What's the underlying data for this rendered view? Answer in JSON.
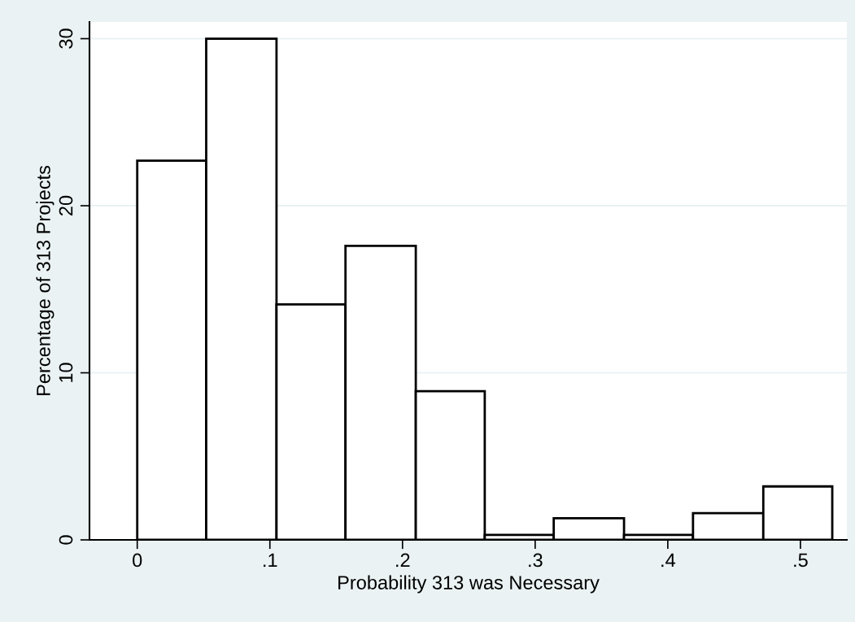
{
  "chart_data": {
    "type": "histogram",
    "xlabel": "Probability 313 was Necessary",
    "ylabel": "Percentage of 313 Projects",
    "bins": [
      0,
      0.052,
      0.105,
      0.157,
      0.21,
      0.262,
      0.314,
      0.367,
      0.419,
      0.472,
      0.524
    ],
    "values": [
      22.7,
      30.0,
      14.1,
      17.6,
      8.9,
      0.3,
      1.3,
      0.3,
      1.6,
      3.2
    ],
    "color": "#ffffff",
    "xlim": [
      -0.036,
      0.535
    ],
    "ylim": [
      0,
      31
    ],
    "xticks": [
      0,
      {
        "value": 0.1,
        "label": ".1"
      },
      {
        "value": 0.2,
        "label": ".2"
      },
      {
        "value": 0.3,
        "label": ".3"
      },
      {
        "value": 0.4,
        "label": ".4"
      },
      {
        "value": 0.5,
        "label": ".5"
      }
    ],
    "yticks": [
      0,
      10,
      20,
      30
    ],
    "grid": "y"
  }
}
